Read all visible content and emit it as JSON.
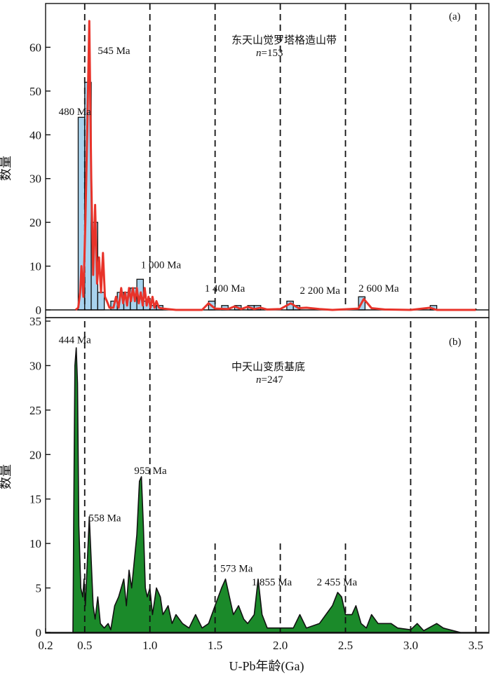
{
  "chart_data": [
    {
      "type": "bar",
      "panel_label": "(a)",
      "title": "东天山觉罗塔格造山带",
      "n_label": "=153",
      "n_symbol": "n",
      "ylabel": "数量",
      "ylim": [
        0,
        70
      ],
      "yticks": [
        0,
        10,
        20,
        30,
        40,
        50,
        60
      ],
      "xlim": [
        0.2,
        3.6
      ],
      "dashed_lines_x": [
        0.5,
        1.0,
        1.5,
        2.0,
        2.5,
        3.0,
        3.5
      ],
      "histogram": {
        "bin_width": 0.05,
        "color": "#a8d3ee",
        "bins": [
          {
            "x": 0.45,
            "value": 44
          },
          {
            "x": 0.5,
            "value": 52
          },
          {
            "x": 0.55,
            "value": 20
          },
          {
            "x": 0.6,
            "value": 4
          },
          {
            "x": 0.7,
            "value": 2
          },
          {
            "x": 0.75,
            "value": 4
          },
          {
            "x": 0.8,
            "value": 4
          },
          {
            "x": 0.85,
            "value": 5
          },
          {
            "x": 0.9,
            "value": 7
          },
          {
            "x": 0.95,
            "value": 2
          },
          {
            "x": 1.0,
            "value": 1
          },
          {
            "x": 1.05,
            "value": 1
          },
          {
            "x": 1.45,
            "value": 2
          },
          {
            "x": 1.55,
            "value": 1
          },
          {
            "x": 1.65,
            "value": 1
          },
          {
            "x": 1.75,
            "value": 1
          },
          {
            "x": 1.8,
            "value": 1
          },
          {
            "x": 2.05,
            "value": 2
          },
          {
            "x": 2.1,
            "value": 1
          },
          {
            "x": 2.6,
            "value": 3
          },
          {
            "x": 3.15,
            "value": 1
          }
        ]
      },
      "curve": {
        "color": "#e8332a",
        "points": [
          [
            0.43,
            0
          ],
          [
            0.45,
            0.5
          ],
          [
            0.465,
            4
          ],
          [
            0.475,
            10
          ],
          [
            0.49,
            3
          ],
          [
            0.505,
            20
          ],
          [
            0.52,
            42
          ],
          [
            0.535,
            66
          ],
          [
            0.55,
            30
          ],
          [
            0.565,
            8
          ],
          [
            0.58,
            24
          ],
          [
            0.595,
            6
          ],
          [
            0.61,
            12
          ],
          [
            0.625,
            4
          ],
          [
            0.64,
            13
          ],
          [
            0.655,
            3
          ],
          [
            0.67,
            2
          ],
          [
            0.69,
            0.5
          ],
          [
            0.72,
            0.5
          ],
          [
            0.74,
            3
          ],
          [
            0.76,
            0.5
          ],
          [
            0.78,
            5
          ],
          [
            0.795,
            1.5
          ],
          [
            0.81,
            4
          ],
          [
            0.825,
            1
          ],
          [
            0.84,
            5
          ],
          [
            0.855,
            2
          ],
          [
            0.87,
            5
          ],
          [
            0.885,
            2
          ],
          [
            0.9,
            5
          ],
          [
            0.915,
            1.5
          ],
          [
            0.93,
            4
          ],
          [
            0.945,
            1
          ],
          [
            0.96,
            5
          ],
          [
            0.975,
            1
          ],
          [
            0.99,
            3
          ],
          [
            1.005,
            0.5
          ],
          [
            1.02,
            3
          ],
          [
            1.035,
            0.5
          ],
          [
            1.05,
            2
          ],
          [
            1.07,
            0.5
          ],
          [
            1.1,
            0.3
          ],
          [
            1.2,
            0
          ],
          [
            1.4,
            0
          ],
          [
            1.45,
            1.5
          ],
          [
            1.5,
            0.3
          ],
          [
            1.6,
            0.2
          ],
          [
            1.65,
            0.8
          ],
          [
            1.7,
            0.2
          ],
          [
            1.75,
            0.7
          ],
          [
            1.8,
            0.2
          ],
          [
            1.85,
            0.5
          ],
          [
            1.9,
            0.1
          ],
          [
            2.0,
            0.2
          ],
          [
            2.08,
            1.5
          ],
          [
            2.14,
            0.4
          ],
          [
            2.2,
            0.5
          ],
          [
            2.3,
            0.2
          ],
          [
            2.4,
            0
          ],
          [
            2.6,
            0.3
          ],
          [
            2.64,
            2.5
          ],
          [
            2.7,
            0.4
          ],
          [
            2.8,
            0.1
          ],
          [
            3.0,
            0
          ],
          [
            3.15,
            0.5
          ],
          [
            3.2,
            0
          ],
          [
            3.5,
            0
          ]
        ]
      },
      "annotations": [
        {
          "text": "545 Ma",
          "x": 0.6,
          "y": 58.5
        },
        {
          "text": "480 Ma",
          "x": 0.3,
          "y": 44.5
        },
        {
          "text": "1 000 Ma",
          "x": 0.93,
          "y": 9.5
        },
        {
          "text": "1 400 Ma",
          "x": 1.42,
          "y": 4.2
        },
        {
          "text": "2 200 Ma",
          "x": 2.15,
          "y": 3.7
        },
        {
          "text": "2 600 Ma",
          "x": 2.6,
          "y": 4.2
        }
      ]
    },
    {
      "type": "area",
      "panel_label": "(b)",
      "title": "中天山变质基底",
      "n_label": "=247",
      "n_symbol": "n",
      "ylabel": "数量",
      "ylim": [
        0,
        35
      ],
      "yticks": [
        0,
        5,
        10,
        15,
        20,
        25,
        30,
        35
      ],
      "xlim": [
        0.2,
        3.6
      ],
      "xticks": [
        0.2,
        0.5,
        1.0,
        1.5,
        2.0,
        2.5,
        3.0,
        3.5
      ],
      "xtick_labels": [
        "0.2",
        "0.5",
        "1.0",
        "1.5",
        "2.0",
        "2.5",
        "3.0",
        "3.5"
      ],
      "xlabel": "U-Pb年龄(Ga)",
      "dashed_lines_x": [
        0.5,
        1.0,
        1.5,
        2.0,
        2.5,
        3.0,
        3.5
      ],
      "dashed_lines_start_y": [
        35,
        35,
        10,
        10,
        10,
        35,
        35
      ],
      "fill_color": "#1b8a2a",
      "points": [
        [
          0.41,
          0
        ],
        [
          0.415,
          12
        ],
        [
          0.425,
          30
        ],
        [
          0.435,
          32
        ],
        [
          0.445,
          28
        ],
        [
          0.455,
          12
        ],
        [
          0.47,
          5
        ],
        [
          0.485,
          4
        ],
        [
          0.495,
          6
        ],
        [
          0.505,
          3
        ],
        [
          0.52,
          8
        ],
        [
          0.535,
          13
        ],
        [
          0.55,
          8
        ],
        [
          0.565,
          3
        ],
        [
          0.58,
          1.5
        ],
        [
          0.6,
          4
        ],
        [
          0.62,
          1
        ],
        [
          0.65,
          0.5
        ],
        [
          0.68,
          1
        ],
        [
          0.7,
          0.3
        ],
        [
          0.73,
          3
        ],
        [
          0.76,
          4
        ],
        [
          0.78,
          5
        ],
        [
          0.8,
          6
        ],
        [
          0.82,
          3
        ],
        [
          0.84,
          7
        ],
        [
          0.86,
          5
        ],
        [
          0.88,
          8
        ],
        [
          0.9,
          11
        ],
        [
          0.92,
          17
        ],
        [
          0.935,
          17.5
        ],
        [
          0.95,
          12
        ],
        [
          0.965,
          5
        ],
        [
          0.98,
          4
        ],
        [
          1.0,
          5
        ],
        [
          1.02,
          2
        ],
        [
          1.05,
          5
        ],
        [
          1.08,
          4
        ],
        [
          1.1,
          2
        ],
        [
          1.14,
          3
        ],
        [
          1.17,
          1
        ],
        [
          1.2,
          2
        ],
        [
          1.25,
          1
        ],
        [
          1.3,
          0.5
        ],
        [
          1.35,
          2
        ],
        [
          1.4,
          0.5
        ],
        [
          1.45,
          1
        ],
        [
          1.5,
          3
        ],
        [
          1.55,
          5
        ],
        [
          1.58,
          6
        ],
        [
          1.61,
          4
        ],
        [
          1.64,
          2
        ],
        [
          1.68,
          3
        ],
        [
          1.72,
          1.5
        ],
        [
          1.75,
          1
        ],
        [
          1.8,
          2
        ],
        [
          1.83,
          6
        ],
        [
          1.86,
          2
        ],
        [
          1.9,
          0.5
        ],
        [
          2.0,
          0.5
        ],
        [
          2.1,
          0.5
        ],
        [
          2.15,
          2
        ],
        [
          2.2,
          0.5
        ],
        [
          2.3,
          1
        ],
        [
          2.35,
          2
        ],
        [
          2.4,
          3
        ],
        [
          2.44,
          4.5
        ],
        [
          2.47,
          4
        ],
        [
          2.5,
          2
        ],
        [
          2.55,
          2
        ],
        [
          2.58,
          3
        ],
        [
          2.62,
          1
        ],
        [
          2.66,
          0.5
        ],
        [
          2.7,
          2
        ],
        [
          2.75,
          1
        ],
        [
          2.85,
          1
        ],
        [
          2.9,
          0.5
        ],
        [
          3.0,
          0.3
        ],
        [
          3.05,
          1
        ],
        [
          3.1,
          0.2
        ],
        [
          3.2,
          1
        ],
        [
          3.25,
          0.5
        ],
        [
          3.3,
          0.3
        ],
        [
          3.38,
          0
        ]
      ],
      "annotations": [
        {
          "text": "444 Ma",
          "x": 0.3,
          "y": 32.5
        },
        {
          "text": "558 Ma",
          "x": 0.53,
          "y": 12.5
        },
        {
          "text": "955 Ma",
          "x": 0.88,
          "y": 17.8
        },
        {
          "text": "1 573 Ma",
          "x": 1.48,
          "y": 6.8
        },
        {
          "text": "1 855 Ma",
          "x": 1.78,
          "y": 5.3
        },
        {
          "text": "2 455 Ma",
          "x": 2.28,
          "y": 5.3
        }
      ]
    }
  ]
}
